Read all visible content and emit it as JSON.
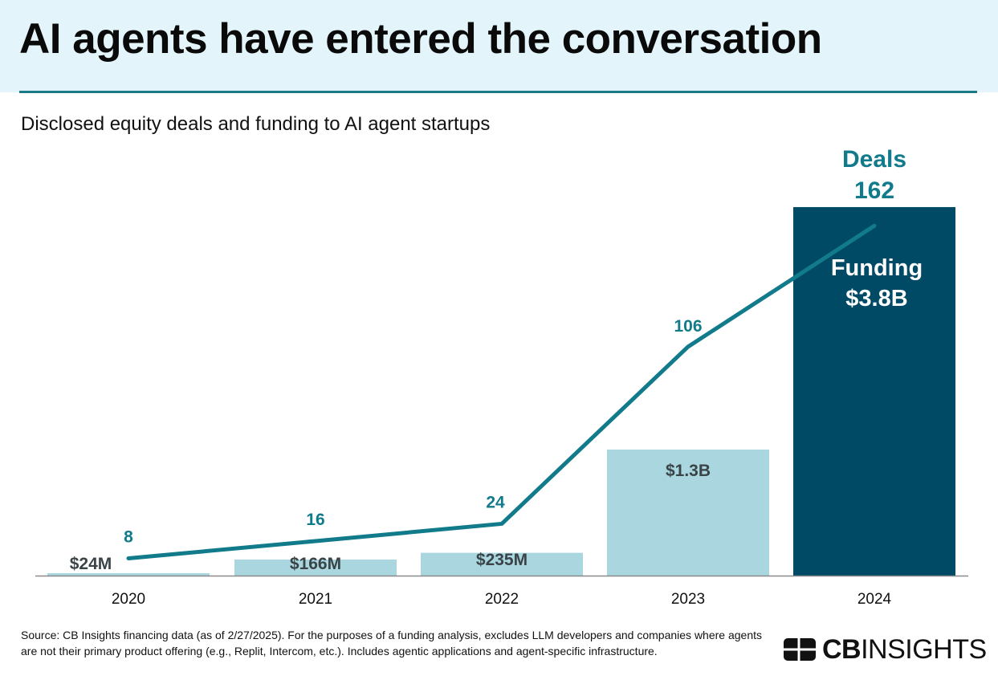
{
  "header": {
    "title": "AI agents have entered the conversation",
    "subtitle": "Disclosed equity deals and funding to AI agent startups"
  },
  "colors": {
    "header_bg": "#e3f5fa",
    "accent_line": "#1a7a8a",
    "bar_light": "#aad6df",
    "bar_dark": "#004a66",
    "deals_line": "#117a8b",
    "bar_label": "#3a4448"
  },
  "chart_data": {
    "type": "bar+line",
    "title": "Disclosed equity deals and funding to AI agent startups",
    "categories": [
      "2020",
      "2021",
      "2022",
      "2023",
      "2024"
    ],
    "series": [
      {
        "name": "Funding",
        "type": "bar",
        "unit": "USD billions",
        "values": [
          0.024,
          0.166,
          0.235,
          1.3,
          3.8
        ],
        "labels": [
          "$24M",
          "$166M",
          "$235M",
          "$1.3B",
          "$3.8B"
        ]
      },
      {
        "name": "Deals",
        "type": "line",
        "values": [
          8,
          16,
          24,
          106,
          162
        ],
        "labels": [
          "8",
          "16",
          "24",
          "106",
          "162"
        ]
      }
    ],
    "annotations": {
      "deals_title": "Deals",
      "funding_title": "Funding"
    },
    "xlabel": "",
    "ylabel": "",
    "grid": false,
    "legend": "none (inline labels on 2024)"
  },
  "footer": {
    "source": "Source: CB Insights financing data (as of 2/27/2025). For the purposes of a funding analysis, excludes LLM developers and companies where agents are not their primary product offering (e.g., Replit, Intercom, etc.). Includes agentic applications and agent-specific infrastructure.",
    "logo_bold": "CB",
    "logo_light": "INSIGHTS"
  }
}
